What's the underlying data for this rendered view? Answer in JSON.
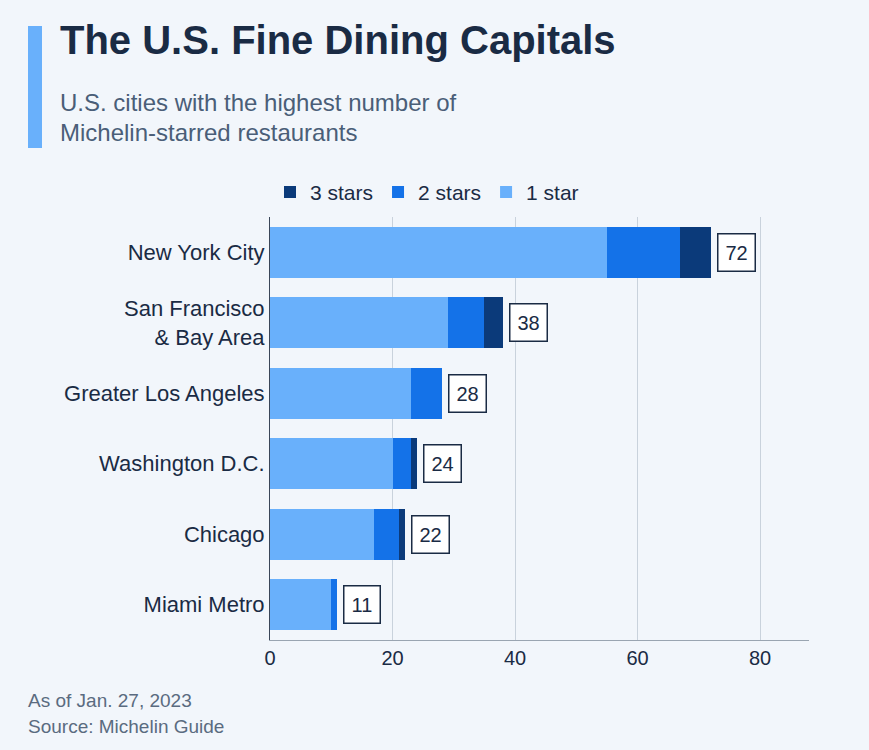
{
  "chart_data": {
    "type": "bar",
    "title": "The U.S. Fine Dining Capitals",
    "subtitle": "U.S. cities with the highest number of Michelin-starred restaurants",
    "annotations": [
      "As of Jan. 27, 2023",
      "Source: Michelin Guide"
    ],
    "orientation": "horizontal",
    "stacked": true,
    "categories": [
      "New York City",
      "San Francisco & Bay Area",
      "Greater Los Angeles",
      "Washington D.C.",
      "Chicago",
      "Miami Metro"
    ],
    "series": [
      {
        "name": "1 star",
        "color": "#69b0fb",
        "values": [
          55,
          29,
          23,
          20,
          17,
          10
        ]
      },
      {
        "name": "2 stars",
        "color": "#1472e8",
        "values": [
          12,
          6,
          5,
          3,
          4,
          1
        ]
      },
      {
        "name": "3 stars",
        "color": "#0b3a7a",
        "values": [
          5,
          3,
          0,
          1,
          1,
          0
        ]
      }
    ],
    "totals": [
      72,
      38,
      28,
      24,
      22,
      11
    ],
    "xlim": [
      0,
      88
    ],
    "xticks": [
      0,
      20,
      40,
      60,
      80
    ],
    "grid": true,
    "legend": "top"
  }
}
